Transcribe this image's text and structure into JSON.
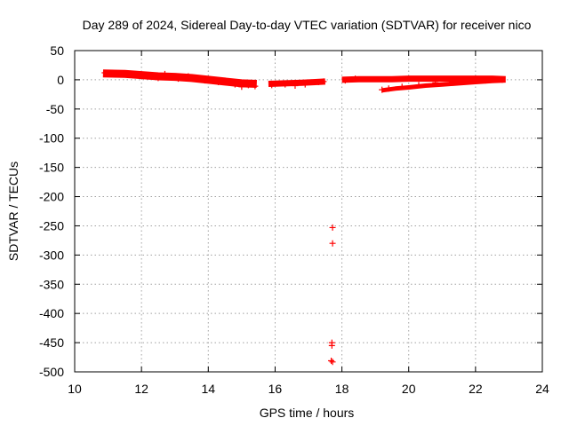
{
  "chart_data": {
    "type": "scatter",
    "title": "Day 289 of 2024, Sidereal Day-to-day VTEC variation (SDTVAR) for receiver nico",
    "xlabel": "GPS time / hours",
    "ylabel": "SDTVAR / TECUs",
    "xlim": [
      10,
      24
    ],
    "ylim": [
      -500,
      50
    ],
    "x_ticks": [
      10,
      12,
      14,
      16,
      18,
      20,
      22,
      24
    ],
    "y_ticks": [
      50,
      0,
      -50,
      -100,
      -150,
      -200,
      -250,
      -300,
      -350,
      -400,
      -450,
      -500
    ],
    "grid": true,
    "marker": "+",
    "color": "#ff0000",
    "series": [
      {
        "bands": [
          {
            "points": [
              [
                10.85,
                11
              ],
              [
                11.5,
                10
              ],
              [
                12.0,
                8
              ],
              [
                12.5,
                6
              ],
              [
                13.0,
                5
              ],
              [
                13.5,
                3
              ],
              [
                14.0,
                0
              ],
              [
                14.5,
                -3
              ],
              [
                15.0,
                -6
              ],
              [
                15.45,
                -7
              ]
            ],
            "thickness": 9
          },
          {
            "points": [
              [
                15.8,
                -7
              ],
              [
                16.3,
                -6
              ],
              [
                16.8,
                -5
              ],
              [
                17.2,
                -4
              ],
              [
                17.5,
                -3
              ]
            ],
            "thickness": 7
          },
          {
            "points": [
              [
                18.0,
                0
              ],
              [
                18.5,
                1
              ],
              [
                19.0,
                1
              ],
              [
                19.5,
                1
              ],
              [
                20.0,
                2
              ],
              [
                20.5,
                2
              ],
              [
                21.0,
                2
              ],
              [
                21.5,
                2
              ],
              [
                22.0,
                2
              ],
              [
                22.5,
                2
              ],
              [
                22.9,
                1
              ]
            ],
            "thickness": 7
          },
          {
            "points": [
              [
                19.2,
                -18
              ],
              [
                19.6,
                -15
              ],
              [
                20.0,
                -13
              ],
              [
                20.5,
                -10
              ],
              [
                21.0,
                -8
              ],
              [
                21.5,
                -6
              ],
              [
                22.0,
                -4
              ],
              [
                22.5,
                -2
              ],
              [
                22.9,
                -1
              ]
            ],
            "thickness": 5
          }
        ],
        "points": [
          [
            10.9,
            12
          ],
          [
            11.2,
            11
          ],
          [
            11.8,
            9
          ],
          [
            12.2,
            6
          ],
          [
            12.5,
            3
          ],
          [
            12.7,
            10
          ],
          [
            13.1,
            2
          ],
          [
            13.4,
            6
          ],
          [
            13.9,
            -1
          ],
          [
            14.3,
            -4
          ],
          [
            14.8,
            -8
          ],
          [
            15.0,
            -12
          ],
          [
            15.2,
            -9
          ],
          [
            15.4,
            -11
          ],
          [
            15.9,
            -9
          ],
          [
            16.3,
            -8
          ],
          [
            16.6,
            -10
          ],
          [
            16.9,
            -8
          ],
          [
            17.3,
            -4
          ],
          [
            17.45,
            -3
          ],
          [
            17.72,
            -253
          ],
          [
            17.72,
            -280
          ],
          [
            17.7,
            -450
          ],
          [
            17.7,
            -455
          ],
          [
            17.68,
            -481
          ],
          [
            17.72,
            -483
          ],
          [
            18.1,
            -1
          ],
          [
            18.4,
            2
          ],
          [
            19.2,
            -17
          ],
          [
            19.4,
            -15
          ],
          [
            19.8,
            -12
          ],
          [
            20.3,
            -9
          ],
          [
            20.8,
            -5
          ],
          [
            21.3,
            -4
          ],
          [
            21.8,
            -2
          ],
          [
            22.3,
            -1
          ],
          [
            22.8,
            0
          ]
        ]
      }
    ]
  }
}
